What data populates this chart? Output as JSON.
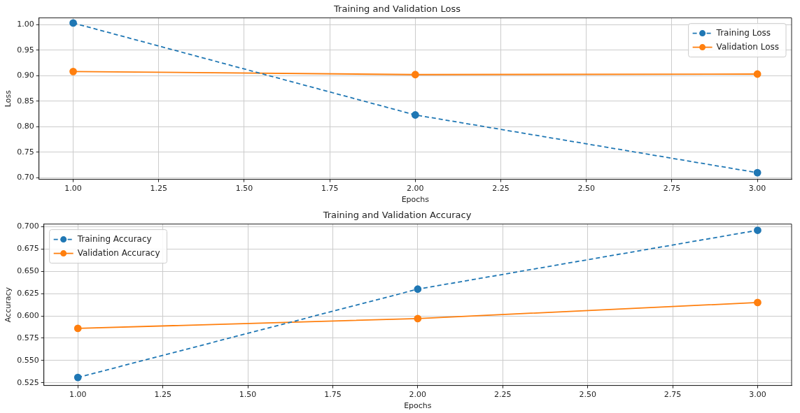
{
  "chart_data": [
    {
      "type": "line",
      "title": "Training and Validation Loss",
      "xlabel": "Epochs",
      "ylabel": "Loss",
      "x": [
        1,
        2,
        3
      ],
      "xlim": [
        0.9,
        3.1
      ],
      "xticks": [
        {
          "value": 1,
          "label": "1.00"
        },
        {
          "value": 1.25,
          "label": "1.25"
        },
        {
          "value": 1.5,
          "label": "1.50"
        },
        {
          "value": 1.75,
          "label": "1.75"
        },
        {
          "value": 2,
          "label": "2.00"
        },
        {
          "value": 2.25,
          "label": "2.25"
        },
        {
          "value": 2.5,
          "label": "2.50"
        },
        {
          "value": 2.75,
          "label": "2.75"
        },
        {
          "value": 3,
          "label": "3.00"
        }
      ],
      "ylim": [
        0.697,
        1.013
      ],
      "yticks": [
        {
          "value": 0.7,
          "label": "0.70"
        },
        {
          "value": 0.75,
          "label": "0.75"
        },
        {
          "value": 0.8,
          "label": "0.80"
        },
        {
          "value": 0.85,
          "label": "0.85"
        },
        {
          "value": 0.9,
          "label": "0.90"
        },
        {
          "value": 0.95,
          "label": "0.95"
        },
        {
          "value": 1,
          "label": "1.00"
        }
      ],
      "grid": true,
      "legend": "top right",
      "marker": "circle",
      "series": [
        {
          "name": "Training Loss",
          "color": "#1f77b4",
          "line_style": "dashed",
          "values": [
            1.003,
            0.823,
            0.71
          ]
        },
        {
          "name": "Validation Loss",
          "color": "#ff7f0e",
          "line_style": "solid",
          "values": [
            0.908,
            0.902,
            0.903
          ]
        }
      ]
    },
    {
      "type": "line",
      "title": "Training and Validation Accuracy",
      "xlabel": "Epochs",
      "ylabel": "Accuracy",
      "x": [
        1,
        2,
        3
      ],
      "xlim": [
        0.9,
        3.1
      ],
      "xticks": [
        {
          "value": 1,
          "label": "1.00"
        },
        {
          "value": 1.25,
          "label": "1.25"
        },
        {
          "value": 1.5,
          "label": "1.50"
        },
        {
          "value": 1.75,
          "label": "1.75"
        },
        {
          "value": 2,
          "label": "2.00"
        },
        {
          "value": 2.25,
          "label": "2.25"
        },
        {
          "value": 2.5,
          "label": "2.50"
        },
        {
          "value": 2.75,
          "label": "2.75"
        },
        {
          "value": 3,
          "label": "3.00"
        }
      ],
      "ylim": [
        0.522,
        0.703
      ],
      "yticks": [
        {
          "value": 0.525,
          "label": "0.525"
        },
        {
          "value": 0.55,
          "label": "0.550"
        },
        {
          "value": 0.575,
          "label": "0.575"
        },
        {
          "value": 0.6,
          "label": "0.600"
        },
        {
          "value": 0.625,
          "label": "0.625"
        },
        {
          "value": 0.65,
          "label": "0.650"
        },
        {
          "value": 0.675,
          "label": "0.675"
        },
        {
          "value": 0.7,
          "label": "0.700"
        }
      ],
      "grid": true,
      "legend": "top left",
      "marker": "circle",
      "series": [
        {
          "name": "Training Accuracy",
          "color": "#1f77b4",
          "line_style": "dashed",
          "values": [
            0.531,
            0.63,
            0.696
          ]
        },
        {
          "name": "Validation Accuracy",
          "color": "#ff7f0e",
          "line_style": "solid",
          "values": [
            0.586,
            0.597,
            0.615
          ]
        }
      ]
    }
  ]
}
